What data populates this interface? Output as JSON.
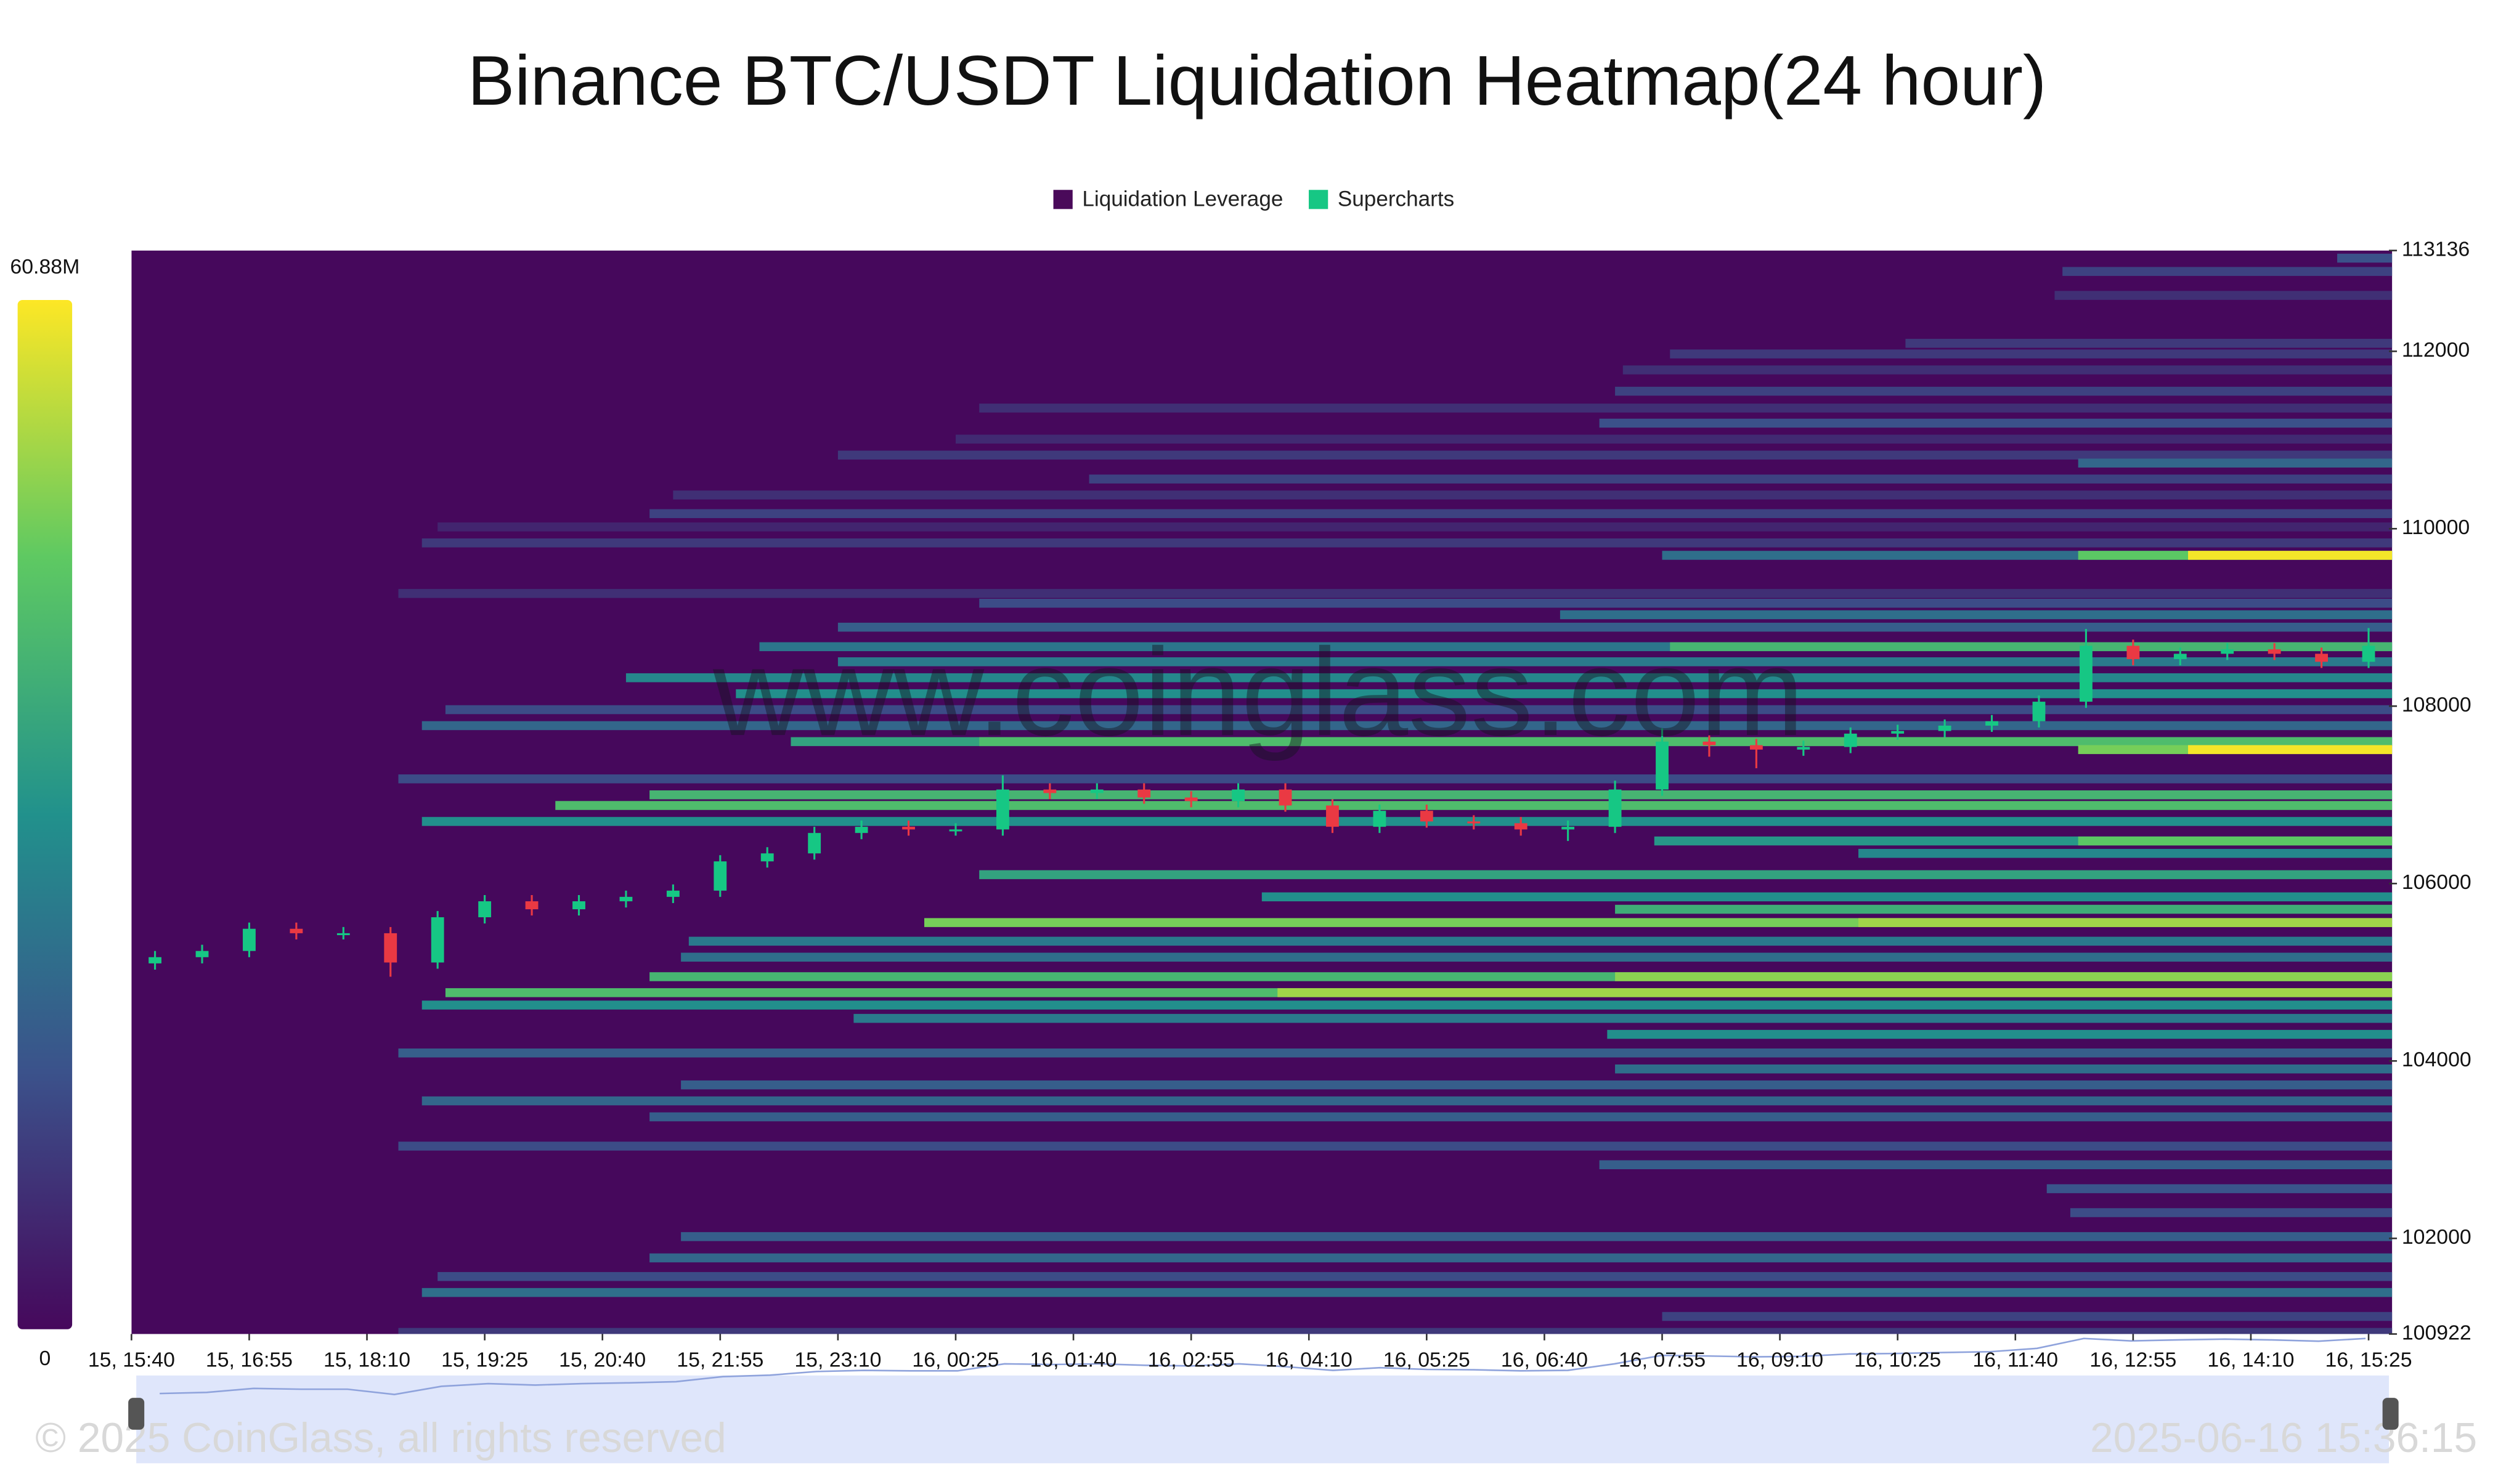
{
  "chart_data": {
    "type": "heatmap",
    "title": "Binance BTC/USDT Liquidation Heatmap(24 hour)",
    "watermark": "www.coinglass.com",
    "footer_left": "© 2025 CoinGlass, all rights reserved",
    "footer_right": "2025-06-16 15:36:15",
    "legend": [
      {
        "name": "Liquidation Leverage",
        "color": "#4a0a5a"
      },
      {
        "name": "Supercharts",
        "color": "#16c784"
      }
    ],
    "xlim": [
      0,
      1440
    ],
    "xticks": [
      {
        "value": 0,
        "label": "15, 15:40"
      },
      {
        "value": 75,
        "label": "15, 16:55"
      },
      {
        "value": 150,
        "label": "15, 18:10"
      },
      {
        "value": 225,
        "label": "15, 19:25"
      },
      {
        "value": 300,
        "label": "15, 20:40"
      },
      {
        "value": 375,
        "label": "15, 21:55"
      },
      {
        "value": 450,
        "label": "15, 23:10"
      },
      {
        "value": 525,
        "label": "16, 00:25"
      },
      {
        "value": 600,
        "label": "16, 01:40"
      },
      {
        "value": 675,
        "label": "16, 02:55"
      },
      {
        "value": 750,
        "label": "16, 04:10"
      },
      {
        "value": 825,
        "label": "16, 05:25"
      },
      {
        "value": 900,
        "label": "16, 06:40"
      },
      {
        "value": 975,
        "label": "16, 07:55"
      },
      {
        "value": 1050,
        "label": "16, 09:10"
      },
      {
        "value": 1125,
        "label": "16, 10:25"
      },
      {
        "value": 1200,
        "label": "16, 11:40"
      },
      {
        "value": 1275,
        "label": "16, 12:55"
      },
      {
        "value": 1350,
        "label": "16, 14:10"
      },
      {
        "value": 1425,
        "label": "16, 15:25"
      }
    ],
    "ylim": [
      100922,
      113136
    ],
    "yticks": [
      100922,
      102000,
      104000,
      106000,
      108000,
      110000,
      112000,
      113136
    ],
    "zlim": [
      0,
      60.88
    ],
    "zticks": [
      {
        "value": 0,
        "label": "0"
      },
      {
        "value": 60.88,
        "label": "60.88M"
      }
    ],
    "colorscale": [
      "#46085c",
      "#3b528b",
      "#21918c",
      "#5ec962",
      "#fde725"
    ],
    "grid": false,
    "bands": {
      "price": [
        113050,
        112900,
        112630,
        112090,
        111970,
        111790,
        111550,
        111360,
        111190,
        111010,
        110830,
        110740,
        110560,
        110380,
        110170,
        110020,
        109840,
        109700,
        109700,
        109700,
        109270,
        109160,
        109030,
        108890,
        108670,
        108670,
        108500,
        108320,
        108140,
        107960,
        107780,
        107600,
        107600,
        107510,
        107510,
        107180,
        107000,
        106880,
        106700,
        106480,
        106480,
        106340,
        106100,
        105850,
        105710,
        105560,
        105560,
        105350,
        105170,
        104950,
        104950,
        104770,
        104770,
        104630,
        104480,
        104300,
        104090,
        103910,
        103730,
        103550,
        103370,
        103040,
        102830,
        102560,
        102290,
        102020,
        101780,
        101570,
        101390,
        101120,
        100940
      ],
      "start": [
        1405,
        1230,
        1225,
        1130,
        980,
        950,
        945,
        540,
        935,
        525,
        450,
        1240,
        610,
        345,
        330,
        195,
        185,
        975,
        1240,
        1310,
        170,
        540,
        910,
        450,
        400,
        980,
        450,
        315,
        385,
        200,
        185,
        420,
        540,
        1240,
        1310,
        170,
        330,
        270,
        185,
        970,
        1240,
        1100,
        540,
        720,
        945,
        505,
        1100,
        355,
        350,
        330,
        945,
        200,
        730,
        185,
        460,
        940,
        170,
        945,
        350,
        185,
        330,
        170,
        935,
        1220,
        1235,
        350,
        330,
        195,
        185,
        975,
        170
      ],
      "value": [
        15,
        12,
        8,
        10,
        10,
        8,
        12,
        8,
        15,
        7,
        10,
        20,
        12,
        8,
        12,
        6,
        10,
        22,
        45,
        60,
        8,
        14,
        22,
        18,
        24,
        40,
        25,
        28,
        30,
        14,
        20,
        35,
        42,
        48,
        60,
        14,
        40,
        42,
        30,
        32,
        45,
        28,
        35,
        30,
        38,
        48,
        52,
        25,
        22,
        40,
        50,
        42,
        52,
        30,
        25,
        30,
        18,
        22,
        18,
        20,
        18,
        14,
        18,
        16,
        14,
        18,
        20,
        14,
        22,
        12,
        10
      ]
    },
    "candles": {
      "up_color": "#16c784",
      "down_color": "#ea3943",
      "x": [
        0,
        30,
        60,
        90,
        120,
        150,
        180,
        210,
        240,
        270,
        300,
        330,
        360,
        390,
        420,
        450,
        480,
        510,
        540,
        570,
        600,
        630,
        660,
        690,
        720,
        750,
        780,
        810,
        840,
        870,
        900,
        930,
        960,
        990,
        1020,
        1050,
        1080,
        1110,
        1140,
        1170,
        1200,
        1230,
        1260,
        1290,
        1320,
        1350,
        1380,
        1410
      ],
      "open": [
        105100,
        105170,
        105240,
        105490,
        105440,
        105440,
        105110,
        105620,
        105800,
        105710,
        105800,
        105850,
        105920,
        106250,
        106340,
        106570,
        106640,
        106610,
        106610,
        107060,
        107020,
        107060,
        106970,
        106930,
        107060,
        106880,
        106640,
        106820,
        106700,
        106680,
        106610,
        106640,
        107060,
        107600,
        107560,
        107510,
        107540,
        107690,
        107720,
        107780,
        107830,
        108050,
        108680,
        108530,
        108590,
        108640,
        108590,
        108500
      ],
      "close": [
        105170,
        105240,
        105490,
        105440,
        105440,
        105110,
        105620,
        105800,
        105710,
        105800,
        105850,
        105920,
        106250,
        106340,
        106570,
        106640,
        106610,
        106610,
        107060,
        107020,
        107060,
        106970,
        106930,
        107060,
        106880,
        106640,
        106820,
        106700,
        106680,
        106610,
        106640,
        107060,
        107600,
        107560,
        107510,
        107540,
        107690,
        107720,
        107780,
        107830,
        108050,
        108680,
        108530,
        108590,
        108640,
        108590,
        108500,
        108680
      ],
      "high": [
        105240,
        105310,
        105560,
        105560,
        105510,
        105510,
        105690,
        105870,
        105870,
        105870,
        105920,
        105990,
        106320,
        106410,
        106640,
        106710,
        106710,
        106680,
        107220,
        107130,
        107130,
        107130,
        107040,
        107130,
        107130,
        106950,
        106890,
        106890,
        106770,
        106750,
        106710,
        107160,
        107750,
        107670,
        107630,
        107610,
        107760,
        107790,
        107850,
        107900,
        108120,
        108870,
        108750,
        108660,
        108710,
        108710,
        108660,
        108880
      ],
      "low": [
        105030,
        105100,
        105170,
        105370,
        105370,
        104950,
        105040,
        105550,
        105640,
        105640,
        105730,
        105780,
        105850,
        106180,
        106270,
        106500,
        106540,
        106540,
        106540,
        106950,
        106950,
        106900,
        106860,
        106860,
        106810,
        106570,
        106570,
        106630,
        106610,
        106540,
        106480,
        106570,
        106990,
        107430,
        107300,
        107440,
        107470,
        107620,
        107650,
        107710,
        107760,
        107980,
        108460,
        108460,
        108520,
        108520,
        108430,
        108430
      ]
    }
  }
}
